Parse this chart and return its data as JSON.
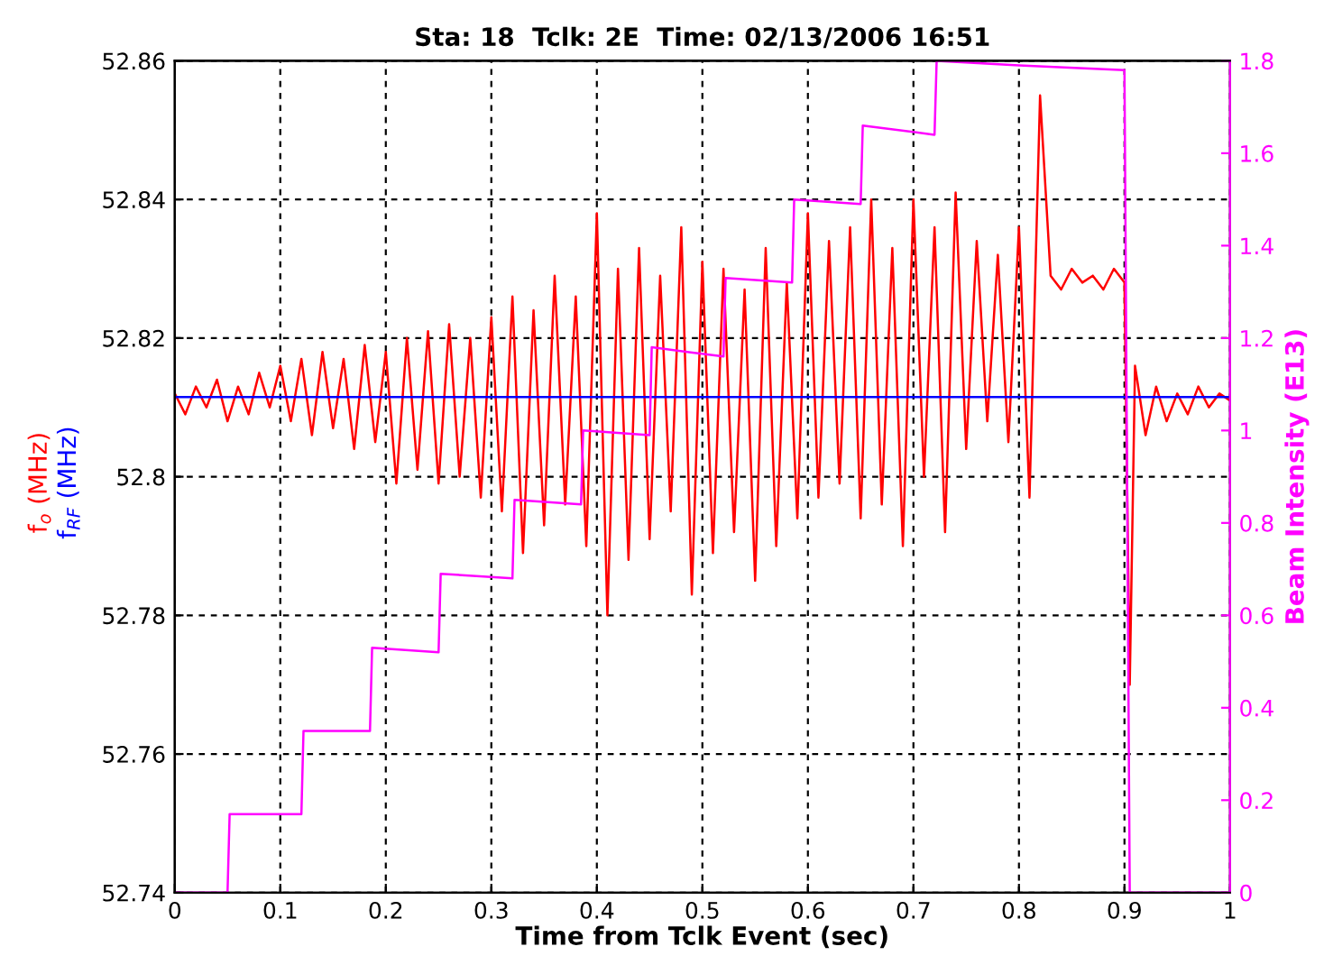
{
  "chart_data": {
    "type": "line",
    "title": "Sta: 18  Tclk: 2E  Time: 02/13/2006 16:51",
    "xlabel": "Time from Tclk Event (sec)",
    "y2label": "Beam Intensity (E13)",
    "xlim": [
      0,
      1
    ],
    "xticks": [
      0,
      0.1,
      0.2,
      0.3,
      0.4,
      0.5,
      0.6,
      0.7,
      0.8,
      0.9,
      1
    ],
    "ylim": [
      52.74,
      52.86
    ],
    "yticks": [
      52.74,
      52.76,
      52.78,
      52.8,
      52.82,
      52.84,
      52.86
    ],
    "y2lim": [
      0,
      1.8
    ],
    "y2ticks": [
      0,
      0.2,
      0.4,
      0.6,
      0.8,
      1,
      1.2,
      1.4,
      1.6,
      1.8
    ],
    "grid": true,
    "legend": false,
    "series": [
      {
        "name": "f$_{o}$ (MHz)",
        "color": "#ff0000",
        "x": [
          0,
          0.01,
          0.02,
          0.03,
          0.04,
          0.05,
          0.06,
          0.07,
          0.08,
          0.09,
          0.1,
          0.11,
          0.12,
          0.13,
          0.14,
          0.15,
          0.16,
          0.17,
          0.18,
          0.19,
          0.2,
          0.21,
          0.22,
          0.23,
          0.24,
          0.25,
          0.26,
          0.27,
          0.28,
          0.29,
          0.3,
          0.31,
          0.32,
          0.33,
          0.34,
          0.35,
          0.36,
          0.37,
          0.38,
          0.39,
          0.4,
          0.41,
          0.42,
          0.43,
          0.44,
          0.45,
          0.46,
          0.47,
          0.48,
          0.49,
          0.5,
          0.51,
          0.52,
          0.53,
          0.54,
          0.55,
          0.56,
          0.57,
          0.58,
          0.59,
          0.6,
          0.61,
          0.62,
          0.63,
          0.64,
          0.65,
          0.66,
          0.67,
          0.68,
          0.69,
          0.7,
          0.71,
          0.72,
          0.73,
          0.74,
          0.75,
          0.76,
          0.77,
          0.78,
          0.79,
          0.8,
          0.81,
          0.82,
          0.83,
          0.84,
          0.85,
          0.86,
          0.87,
          0.88,
          0.89,
          0.9,
          0.905,
          0.91,
          0.92,
          0.93,
          0.94,
          0.95,
          0.96,
          0.97,
          0.98,
          0.99,
          1
        ],
        "values": [
          52.812,
          52.809,
          52.813,
          52.81,
          52.814,
          52.808,
          52.813,
          52.809,
          52.815,
          52.81,
          52.816,
          52.808,
          52.817,
          52.806,
          52.818,
          52.807,
          52.817,
          52.804,
          52.819,
          52.805,
          52.818,
          52.799,
          52.82,
          52.801,
          52.821,
          52.799,
          52.822,
          52.8,
          52.82,
          52.797,
          52.823,
          52.795,
          52.826,
          52.789,
          52.824,
          52.793,
          52.829,
          52.796,
          52.826,
          52.79,
          52.838,
          52.78,
          52.83,
          52.788,
          52.833,
          52.791,
          52.829,
          52.795,
          52.836,
          52.783,
          52.831,
          52.789,
          52.83,
          52.792,
          52.827,
          52.785,
          52.833,
          52.79,
          52.828,
          52.794,
          52.838,
          52.797,
          52.834,
          52.799,
          52.836,
          52.794,
          52.84,
          52.796,
          52.833,
          52.79,
          52.84,
          52.8,
          52.836,
          52.792,
          52.841,
          52.804,
          52.834,
          52.808,
          52.832,
          52.805,
          52.836,
          52.797,
          52.855,
          52.829,
          52.827,
          52.83,
          52.828,
          52.829,
          52.827,
          52.83,
          52.828,
          52.77,
          52.816,
          52.806,
          52.813,
          52.808,
          52.812,
          52.809,
          52.813,
          52.81,
          52.812,
          52.811
        ]
      },
      {
        "name": "f$_{RF}$ (MHz)",
        "color": "#0000ff",
        "x": [
          0,
          1
        ],
        "values": [
          52.8115,
          52.8115
        ]
      },
      {
        "color": "#ff00ff",
        "axis": "y2",
        "x": [
          0,
          0.05,
          0.052,
          0.12,
          0.122,
          0.185,
          0.187,
          0.25,
          0.252,
          0.32,
          0.322,
          0.385,
          0.387,
          0.45,
          0.452,
          0.52,
          0.522,
          0.585,
          0.587,
          0.65,
          0.652,
          0.72,
          0.722,
          0.8,
          0.9,
          0.905,
          1
        ],
        "values": [
          0,
          0,
          0.17,
          0.17,
          0.35,
          0.35,
          0.53,
          0.52,
          0.69,
          0.68,
          0.85,
          0.84,
          1.0,
          0.99,
          1.18,
          1.16,
          1.33,
          1.32,
          1.5,
          1.49,
          1.66,
          1.64,
          1.8,
          1.79,
          1.78,
          0,
          0
        ]
      }
    ]
  }
}
